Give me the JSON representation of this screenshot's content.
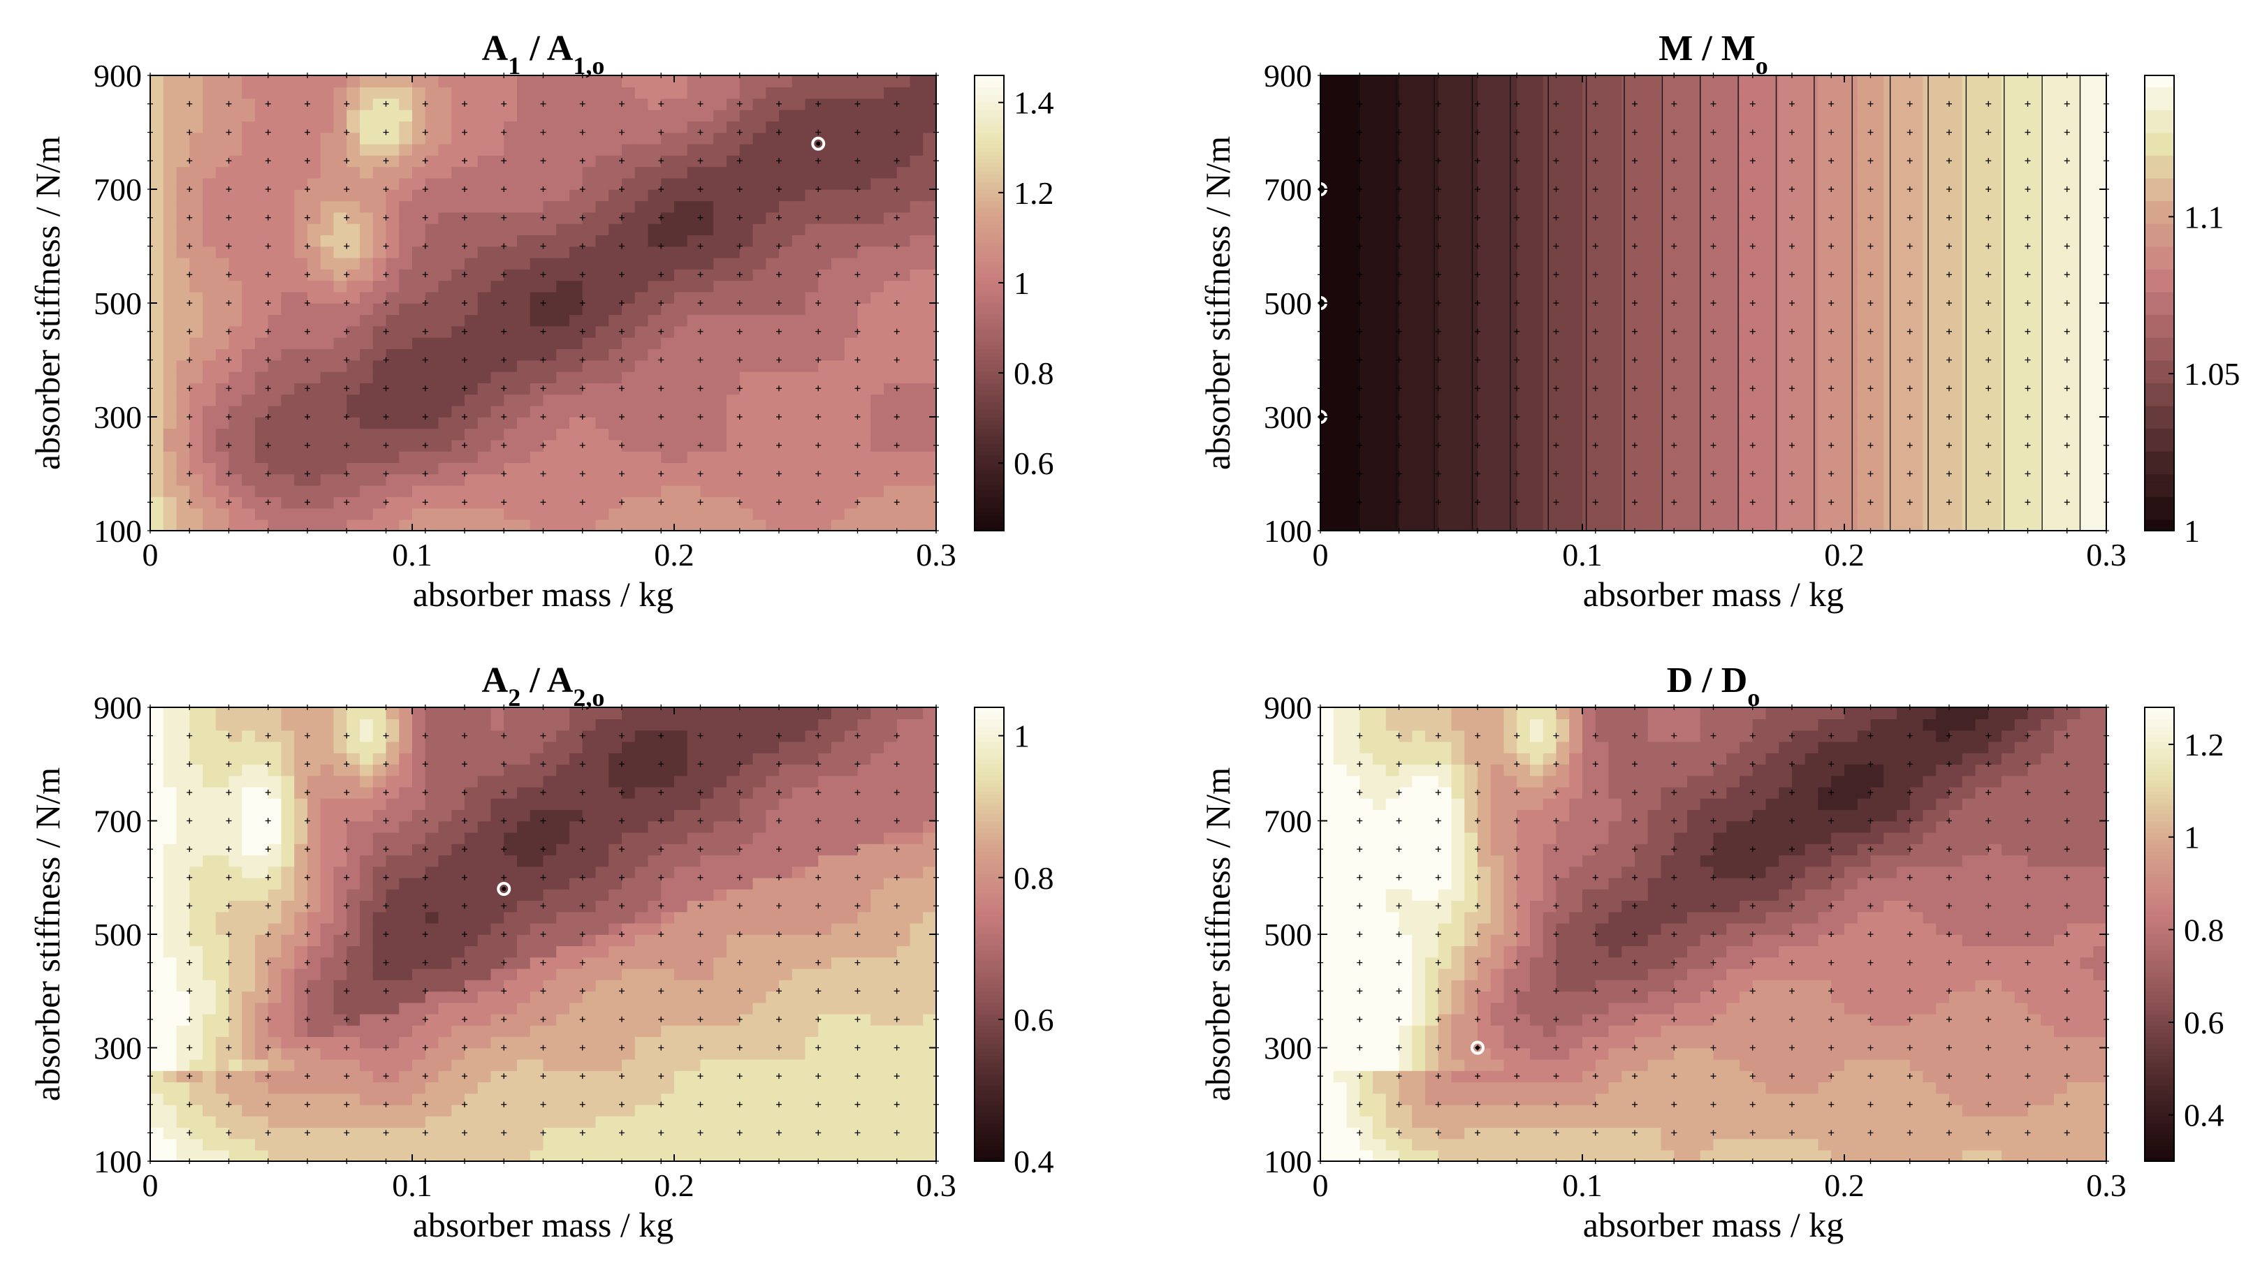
{
  "chart_data": [
    {
      "type": "heatmap",
      "title": "A",
      "title_sub": "1",
      "title_mid": " / A",
      "title_sub2": "1,o",
      "xlabel": "absorber mass / kg",
      "ylabel": "absorber stiffness / N/m",
      "xlim": [
        0,
        0.3
      ],
      "ylim": [
        100,
        900
      ],
      "xticks": [
        "0",
        "0.1",
        "0.2",
        "0.3"
      ],
      "xtick_values": [
        0,
        0.1,
        0.2,
        0.3
      ],
      "yticks": [
        "100",
        "300",
        "500",
        "700",
        "900"
      ],
      "ytick_values": [
        100,
        300,
        500,
        700,
        900
      ],
      "colorbar": {
        "min": 0.45,
        "max": 1.46,
        "ticks": [
          "0.6",
          "0.8",
          "1",
          "1.2",
          "1.4"
        ],
        "tick_values": [
          0.6,
          0.8,
          1.0,
          1.2,
          1.4
        ]
      },
      "optimum": {
        "x": 0.255,
        "y": 780
      }
    },
    {
      "type": "heatmap",
      "title": "M / M",
      "title_sub": "o",
      "title_mid": "",
      "title_sub2": "",
      "xlabel": "absorber mass / kg",
      "ylabel": "absorber stiffness / N/m",
      "xlim": [
        0,
        0.3
      ],
      "ylim": [
        100,
        900
      ],
      "xticks": [
        "0",
        "0.1",
        "0.2",
        "0.3"
      ],
      "xtick_values": [
        0,
        0.1,
        0.2,
        0.3
      ],
      "yticks": [
        "100",
        "300",
        "500",
        "700",
        "900"
      ],
      "ytick_values": [
        100,
        300,
        500,
        700,
        900
      ],
      "colorbar": {
        "min": 1.0,
        "max": 1.145,
        "ticks": [
          "1",
          "1.05",
          "1.1"
        ],
        "tick_values": [
          1.0,
          1.05,
          1.1
        ]
      },
      "optimum_points": [
        {
          "x": 0,
          "y": 300
        },
        {
          "x": 0,
          "y": 500
        },
        {
          "x": 0,
          "y": 700
        }
      ]
    },
    {
      "type": "heatmap",
      "title": "A",
      "title_sub": "2",
      "title_mid": " / A",
      "title_sub2": "2,o",
      "xlabel": "absorber mass / kg",
      "ylabel": "absorber stiffness / N/m",
      "xlim": [
        0,
        0.3
      ],
      "ylim": [
        100,
        900
      ],
      "xticks": [
        "0",
        "0.1",
        "0.2",
        "0.3"
      ],
      "xtick_values": [
        0,
        0.1,
        0.2,
        0.3
      ],
      "yticks": [
        "100",
        "300",
        "500",
        "700",
        "900"
      ],
      "ytick_values": [
        100,
        300,
        500,
        700,
        900
      ],
      "colorbar": {
        "min": 0.4,
        "max": 1.04,
        "ticks": [
          "0.4",
          "0.6",
          "0.8",
          "1"
        ],
        "tick_values": [
          0.4,
          0.6,
          0.8,
          1.0
        ]
      },
      "optimum": {
        "x": 0.135,
        "y": 580
      }
    },
    {
      "type": "heatmap",
      "title": "D / D",
      "title_sub": "o",
      "title_mid": "",
      "title_sub2": "",
      "xlabel": "absorber mass / kg",
      "ylabel": "absorber stiffness / N/m",
      "xlim": [
        0,
        0.3
      ],
      "ylim": [
        100,
        900
      ],
      "xticks": [
        "0",
        "0.1",
        "0.2",
        "0.3"
      ],
      "xtick_values": [
        0,
        0.1,
        0.2,
        0.3
      ],
      "yticks": [
        "100",
        "300",
        "500",
        "700",
        "900"
      ],
      "ytick_values": [
        100,
        300,
        500,
        700,
        900
      ],
      "colorbar": {
        "min": 0.3,
        "max": 1.28,
        "ticks": [
          "0.4",
          "0.6",
          "0.8",
          "1",
          "1.2"
        ],
        "tick_values": [
          0.4,
          0.6,
          0.8,
          1.0,
          1.2
        ]
      },
      "optimum": {
        "x": 0.06,
        "y": 300
      }
    }
  ],
  "colors": {
    "low": "#1a0a0a",
    "mid": "#c0707a",
    "high": "#fdfdf4",
    "marker": "#ffffff"
  }
}
